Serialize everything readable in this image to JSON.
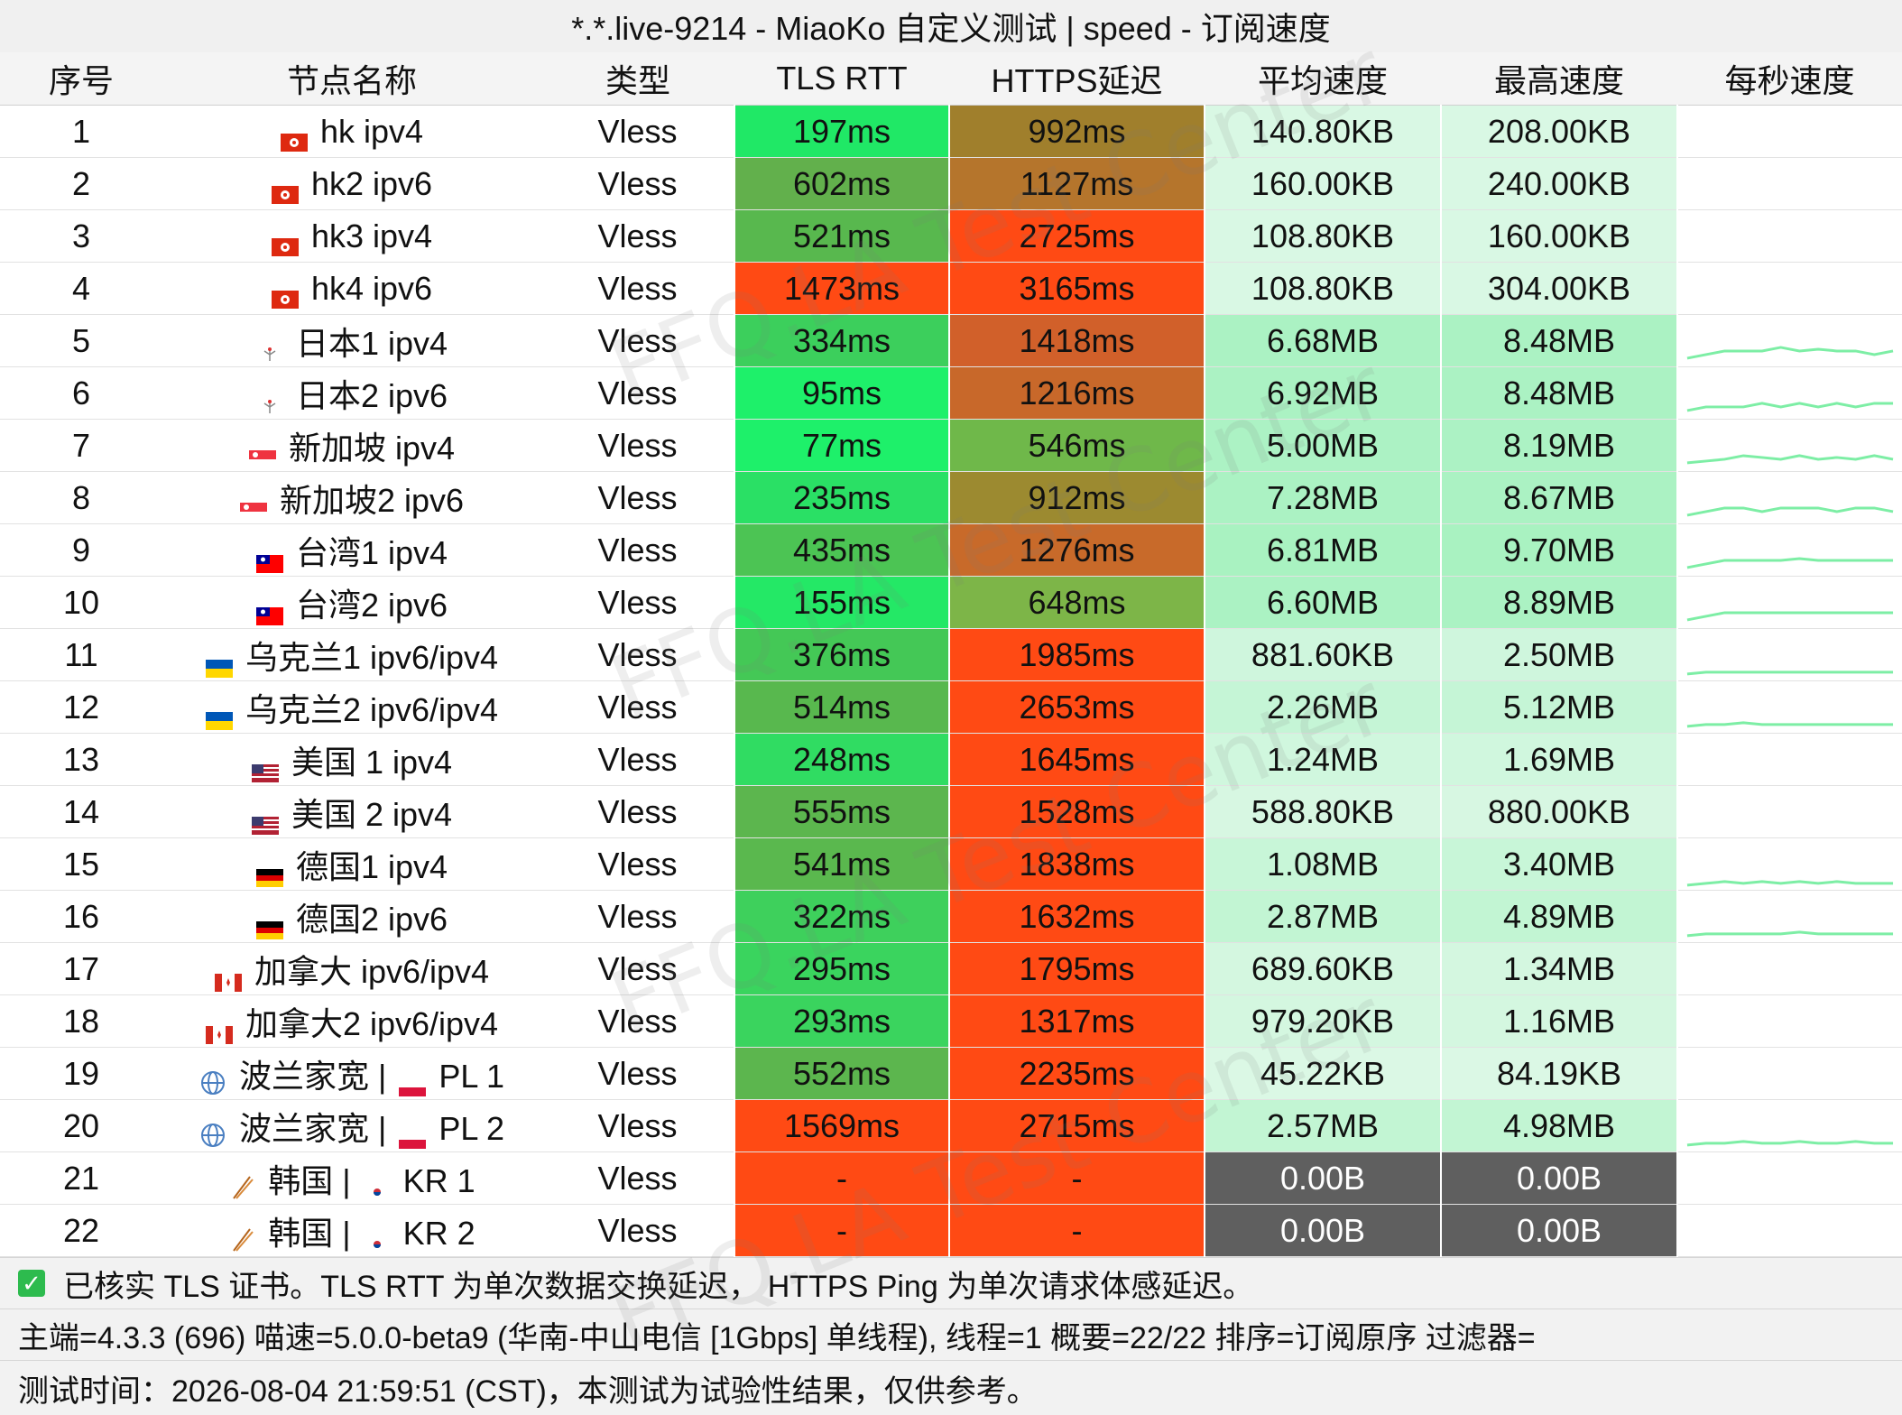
{
  "title": "*.*.live-9214 - MiaoKo 自定义测试 | speed - 订阅速度",
  "columns": [
    "序号",
    "节点名称",
    "类型",
    "TLS RTT",
    "HTTPS延迟",
    "平均速度",
    "最高速度",
    "每秒速度"
  ],
  "colors": {
    "rtt_good": "#22e46a",
    "rtt_mid": "#4bc256",
    "https_good": "#7bb64a",
    "https_mid": "#c96a28",
    "bad": "#ff4a14",
    "speed_low": "#dcf8e6",
    "speed_high": "#9af0b7",
    "speed_zero": "#5f5f5f",
    "sparkline": "#7deea5"
  },
  "rows": [
    {
      "idx": "1",
      "flag": "flag-hk-icon",
      "name": "hk ipv4",
      "sub_flag": "",
      "sub_name": "",
      "type": "Vless",
      "rtt": "197ms",
      "rtt_color": "#20e866",
      "https": "992ms",
      "https_color": "#a07f2c",
      "avg": "140.80KB",
      "max": "208.00KB",
      "speed_level": 0.05,
      "spark": [
        0,
        0,
        0,
        0,
        0,
        0,
        0,
        0,
        0,
        0,
        0,
        0
      ]
    },
    {
      "idx": "2",
      "flag": "flag-hk-icon",
      "name": "hk2 ipv6",
      "sub_flag": "",
      "sub_name": "",
      "type": "Vless",
      "rtt": "602ms",
      "rtt_color": "#62b04c",
      "https": "1127ms",
      "https_color": "#b5752c",
      "avg": "160.00KB",
      "max": "240.00KB",
      "speed_level": 0.05,
      "spark": [
        0,
        0,
        0,
        0,
        0,
        0,
        0,
        0,
        0,
        0,
        0,
        0
      ]
    },
    {
      "idx": "3",
      "flag": "flag-hk-icon",
      "name": "hk3 ipv4",
      "sub_flag": "",
      "sub_name": "",
      "type": "Vless",
      "rtt": "521ms",
      "rtt_color": "#58b84e",
      "https": "2725ms",
      "https_color": "#ff4a14",
      "avg": "108.80KB",
      "max": "160.00KB",
      "speed_level": 0.05,
      "spark": [
        0,
        0,
        0,
        0,
        0,
        0,
        0,
        0,
        0,
        0,
        0,
        0
      ]
    },
    {
      "idx": "4",
      "flag": "flag-hk-icon",
      "name": "hk4 ipv6",
      "sub_flag": "",
      "sub_name": "",
      "type": "Vless",
      "rtt": "1473ms",
      "rtt_color": "#ff4a14",
      "https": "3165ms",
      "https_color": "#ff4a14",
      "avg": "108.80KB",
      "max": "304.00KB",
      "speed_level": 0.05,
      "spark": [
        0,
        0,
        0,
        0,
        0,
        0,
        0,
        0,
        0,
        0,
        0,
        0
      ]
    },
    {
      "idx": "5",
      "flag": "flag-jp-icon",
      "name": "日本1 ipv4",
      "sub_flag": "",
      "sub_name": "",
      "type": "Vless",
      "rtt": "334ms",
      "rtt_color": "#3ccf5c",
      "https": "1418ms",
      "https_color": "#d1602a",
      "avg": "6.68MB",
      "max": "8.48MB",
      "speed_level": 0.75,
      "spark": [
        0.1,
        0.2,
        0.3,
        0.3,
        0.3,
        0.4,
        0.3,
        0.35,
        0.3,
        0.3,
        0.2,
        0.3
      ]
    },
    {
      "idx": "6",
      "flag": "flag-jp-icon",
      "name": "日本2 ipv6",
      "sub_flag": "",
      "sub_name": "",
      "type": "Vless",
      "rtt": "95ms",
      "rtt_color": "#1ef06a",
      "https": "1216ms",
      "https_color": "#c8682a",
      "avg": "6.92MB",
      "max": "8.48MB",
      "speed_level": 0.75,
      "spark": [
        0.1,
        0.2,
        0.2,
        0.2,
        0.3,
        0.2,
        0.3,
        0.2,
        0.3,
        0.2,
        0.3,
        0.3
      ]
    },
    {
      "idx": "7",
      "flag": "flag-sg-icon",
      "name": "新加坡 ipv4",
      "sub_flag": "",
      "sub_name": "",
      "type": "Vless",
      "rtt": "77ms",
      "rtt_color": "#1ef06a",
      "https": "546ms",
      "https_color": "#6fb84a",
      "avg": "5.00MB",
      "max": "8.19MB",
      "speed_level": 0.72,
      "spark": [
        0.1,
        0.15,
        0.2,
        0.3,
        0.25,
        0.2,
        0.3,
        0.2,
        0.25,
        0.2,
        0.3,
        0.2
      ]
    },
    {
      "idx": "8",
      "flag": "flag-sg-icon",
      "name": "新加坡2 ipv6",
      "sub_flag": "",
      "sub_name": "",
      "type": "Vless",
      "rtt": "235ms",
      "rtt_color": "#2ae065",
      "https": "912ms",
      "https_color": "#9c8a30",
      "avg": "7.28MB",
      "max": "8.67MB",
      "speed_level": 0.75,
      "spark": [
        0.1,
        0.2,
        0.3,
        0.3,
        0.2,
        0.3,
        0.3,
        0.3,
        0.2,
        0.3,
        0.3,
        0.2
      ]
    },
    {
      "idx": "9",
      "flag": "flag-tw-icon",
      "name": "台湾1 ipv4",
      "sub_flag": "",
      "sub_name": "",
      "type": "Vless",
      "rtt": "435ms",
      "rtt_color": "#4cc454",
      "https": "1276ms",
      "https_color": "#c86a2a",
      "avg": "6.81MB",
      "max": "9.70MB",
      "speed_level": 0.78,
      "spark": [
        0.1,
        0.2,
        0.3,
        0.3,
        0.3,
        0.3,
        0.35,
        0.3,
        0.3,
        0.3,
        0.3,
        0.3
      ]
    },
    {
      "idx": "10",
      "flag": "flag-tw-icon",
      "name": "台湾2 ipv6",
      "sub_flag": "",
      "sub_name": "",
      "type": "Vless",
      "rtt": "155ms",
      "rtt_color": "#24e866",
      "https": "648ms",
      "https_color": "#7db548",
      "avg": "6.60MB",
      "max": "8.89MB",
      "speed_level": 0.75,
      "spark": [
        0.1,
        0.2,
        0.3,
        0.3,
        0.3,
        0.3,
        0.3,
        0.3,
        0.3,
        0.3,
        0.3,
        0.3
      ]
    },
    {
      "idx": "11",
      "flag": "flag-ua-icon",
      "name": "乌克兰1  ipv6/ipv4",
      "sub_flag": "",
      "sub_name": "",
      "type": "Vless",
      "rtt": "376ms",
      "rtt_color": "#44c856",
      "https": "1985ms",
      "https_color": "#ff4a14",
      "avg": "881.60KB",
      "max": "2.50MB",
      "speed_level": 0.2,
      "spark": [
        0.05,
        0.1,
        0.1,
        0.1,
        0.1,
        0.1,
        0.1,
        0.1,
        0.1,
        0.1,
        0.1,
        0.1
      ]
    },
    {
      "idx": "12",
      "flag": "flag-ua-icon",
      "name": "乌克兰2 ipv6/ipv4",
      "sub_flag": "",
      "sub_name": "",
      "type": "Vless",
      "rtt": "514ms",
      "rtt_color": "#58b84e",
      "https": "2653ms",
      "https_color": "#ff4a14",
      "avg": "2.26MB",
      "max": "5.12MB",
      "speed_level": 0.35,
      "spark": [
        0.05,
        0.1,
        0.1,
        0.15,
        0.1,
        0.1,
        0.1,
        0.1,
        0.1,
        0.1,
        0.1,
        0.1
      ]
    },
    {
      "idx": "13",
      "flag": "flag-us-icon",
      "name": "美国 1 ipv4",
      "sub_flag": "",
      "sub_name": "",
      "type": "Vless",
      "rtt": "248ms",
      "rtt_color": "#30dc62",
      "https": "1645ms",
      "https_color": "#ff4a14",
      "avg": "1.24MB",
      "max": "1.69MB",
      "speed_level": 0.18,
      "spark": [
        0,
        0,
        0,
        0,
        0,
        0,
        0,
        0,
        0,
        0,
        0,
        0
      ]
    },
    {
      "idx": "14",
      "flag": "flag-us-icon",
      "name": "美国 2 ipv4",
      "sub_flag": "",
      "sub_name": "",
      "type": "Vless",
      "rtt": "555ms",
      "rtt_color": "#5cb64e",
      "https": "1528ms",
      "https_color": "#ff4a14",
      "avg": "588.80KB",
      "max": "880.00KB",
      "speed_level": 0.08,
      "spark": [
        0,
        0,
        0,
        0,
        0,
        0,
        0,
        0,
        0,
        0,
        0,
        0
      ]
    },
    {
      "idx": "15",
      "flag": "flag-de-icon",
      "name": "德国1 ipv4",
      "sub_flag": "",
      "sub_name": "",
      "type": "Vless",
      "rtt": "541ms",
      "rtt_color": "#5ab84e",
      "https": "1838ms",
      "https_color": "#ff4a14",
      "avg": "1.08MB",
      "max": "3.40MB",
      "speed_level": 0.3,
      "spark": [
        0,
        0.05,
        0.1,
        0.05,
        0.1,
        0.05,
        0.1,
        0.05,
        0.1,
        0.05,
        0.05,
        0.05
      ]
    },
    {
      "idx": "16",
      "flag": "flag-de-icon",
      "name": "德国2 ipv6",
      "sub_flag": "",
      "sub_name": "",
      "type": "Vless",
      "rtt": "322ms",
      "rtt_color": "#3ed05c",
      "https": "1632ms",
      "https_color": "#ff4a14",
      "avg": "2.87MB",
      "max": "4.89MB",
      "speed_level": 0.4,
      "spark": [
        0.05,
        0.1,
        0.1,
        0.1,
        0.1,
        0.1,
        0.15,
        0.1,
        0.1,
        0.1,
        0.1,
        0.1
      ]
    },
    {
      "idx": "17",
      "flag": "flag-ca-icon",
      "name": "加拿大 ipv6/ipv4",
      "sub_flag": "",
      "sub_name": "",
      "type": "Vless",
      "rtt": "295ms",
      "rtt_color": "#3ad45e",
      "https": "1795ms",
      "https_color": "#ff4a14",
      "avg": "689.60KB",
      "max": "1.34MB",
      "speed_level": 0.12,
      "spark": [
        0,
        0,
        0,
        0,
        0,
        0,
        0,
        0,
        0,
        0,
        0,
        0
      ]
    },
    {
      "idx": "18",
      "flag": "flag-ca-icon",
      "name": "加拿大2 ipv6/ipv4",
      "sub_flag": "",
      "sub_name": "",
      "type": "Vless",
      "rtt": "293ms",
      "rtt_color": "#3ad45e",
      "https": "1317ms",
      "https_color": "#ff4a14",
      "avg": "979.20KB",
      "max": "1.16MB",
      "speed_level": 0.12,
      "spark": [
        0,
        0,
        0,
        0,
        0,
        0,
        0,
        0,
        0,
        0,
        0,
        0
      ]
    },
    {
      "idx": "19",
      "flag": "globe-icon",
      "name": "波兰家宽 |",
      "sub_flag": "flag-pl-icon",
      "sub_name": "PL 1",
      "type": "Vless",
      "rtt": "552ms",
      "rtt_color": "#5cb64e",
      "https": "2235ms",
      "https_color": "#ff4a14",
      "avg": "45.22KB",
      "max": "84.19KB",
      "speed_level": 0.02,
      "spark": [
        0,
        0,
        0,
        0,
        0,
        0,
        0,
        0,
        0,
        0,
        0,
        0
      ]
    },
    {
      "idx": "20",
      "flag": "globe-icon",
      "name": "波兰家宽 |",
      "sub_flag": "flag-pl-icon",
      "sub_name": "PL 2",
      "type": "Vless",
      "rtt": "1569ms",
      "rtt_color": "#ff4a14",
      "https": "2715ms",
      "https_color": "#ff4a14",
      "avg": "2.57MB",
      "max": "4.98MB",
      "speed_level": 0.4,
      "spark": [
        0.05,
        0.1,
        0.1,
        0.15,
        0.1,
        0.1,
        0.15,
        0.1,
        0.1,
        0.15,
        0.1,
        0.1
      ]
    },
    {
      "idx": "21",
      "flag": "chopsticks-icon",
      "name": "韩国 |",
      "sub_flag": "flag-kr-icon",
      "sub_name": "KR 1",
      "type": "Vless",
      "rtt": "-",
      "rtt_color": "#ff4a14",
      "https": "-",
      "https_color": "#ff4a14",
      "avg": "0.00B",
      "max": "0.00B",
      "speed_level": -1,
      "spark": []
    },
    {
      "idx": "22",
      "flag": "chopsticks-icon",
      "name": "韩国 |",
      "sub_flag": "flag-kr-icon",
      "sub_name": "KR 2",
      "type": "Vless",
      "rtt": "-",
      "rtt_color": "#ff4a14",
      "https": "-",
      "https_color": "#ff4a14",
      "avg": "0.00B",
      "max": "0.00B",
      "speed_level": -1,
      "spark": []
    }
  ],
  "footer": {
    "line1": "已核实 TLS 证书。TLS RTT 为单次数据交换延迟， HTTPS Ping 为单次请求体感延迟。",
    "line2": "主端=4.3.3 (696) 喵速=5.0.0-beta9 (华南-中山电信 [1Gbps] 单线程), 线程=1 概要=22/22 排序=订阅原序 过滤器=",
    "line3": "测试时间：2026-08-04 21:59:51 (CST)，本测试为试验性结果，仅供参考。"
  },
  "watermark_text": "FFQ.LA Test Center"
}
